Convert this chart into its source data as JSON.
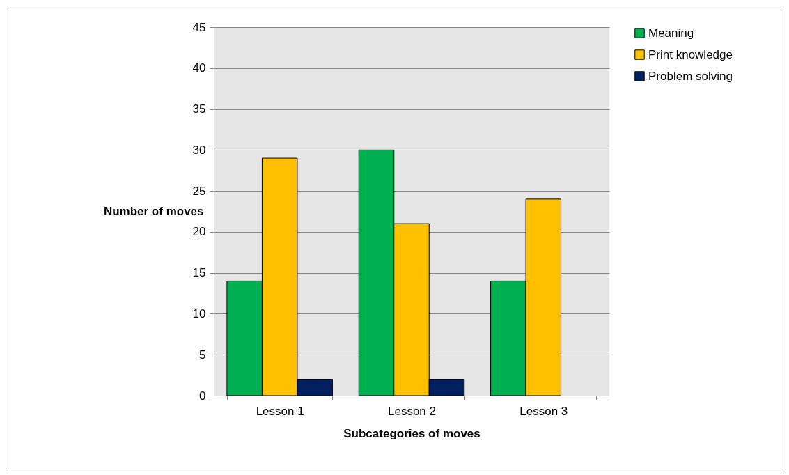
{
  "chart_data": {
    "type": "bar",
    "xlabel": "Subcategories of moves",
    "ylabel": "Number of moves",
    "categories": [
      "Lesson 1",
      "Lesson 2",
      "Lesson 3"
    ],
    "series": [
      {
        "name": "Meaning",
        "color": "#00b050",
        "values": [
          14,
          30,
          14
        ]
      },
      {
        "name": "Print knowledge",
        "color": "#ffc000",
        "values": [
          29,
          21,
          24
        ]
      },
      {
        "name": "Problem solving",
        "color": "#002060",
        "values": [
          2,
          2,
          null
        ]
      }
    ],
    "ylim": [
      0,
      45
    ],
    "yticks": [
      0,
      5,
      10,
      15,
      20,
      25,
      30,
      35,
      40,
      45
    ],
    "grid": "y",
    "legend": "right"
  }
}
